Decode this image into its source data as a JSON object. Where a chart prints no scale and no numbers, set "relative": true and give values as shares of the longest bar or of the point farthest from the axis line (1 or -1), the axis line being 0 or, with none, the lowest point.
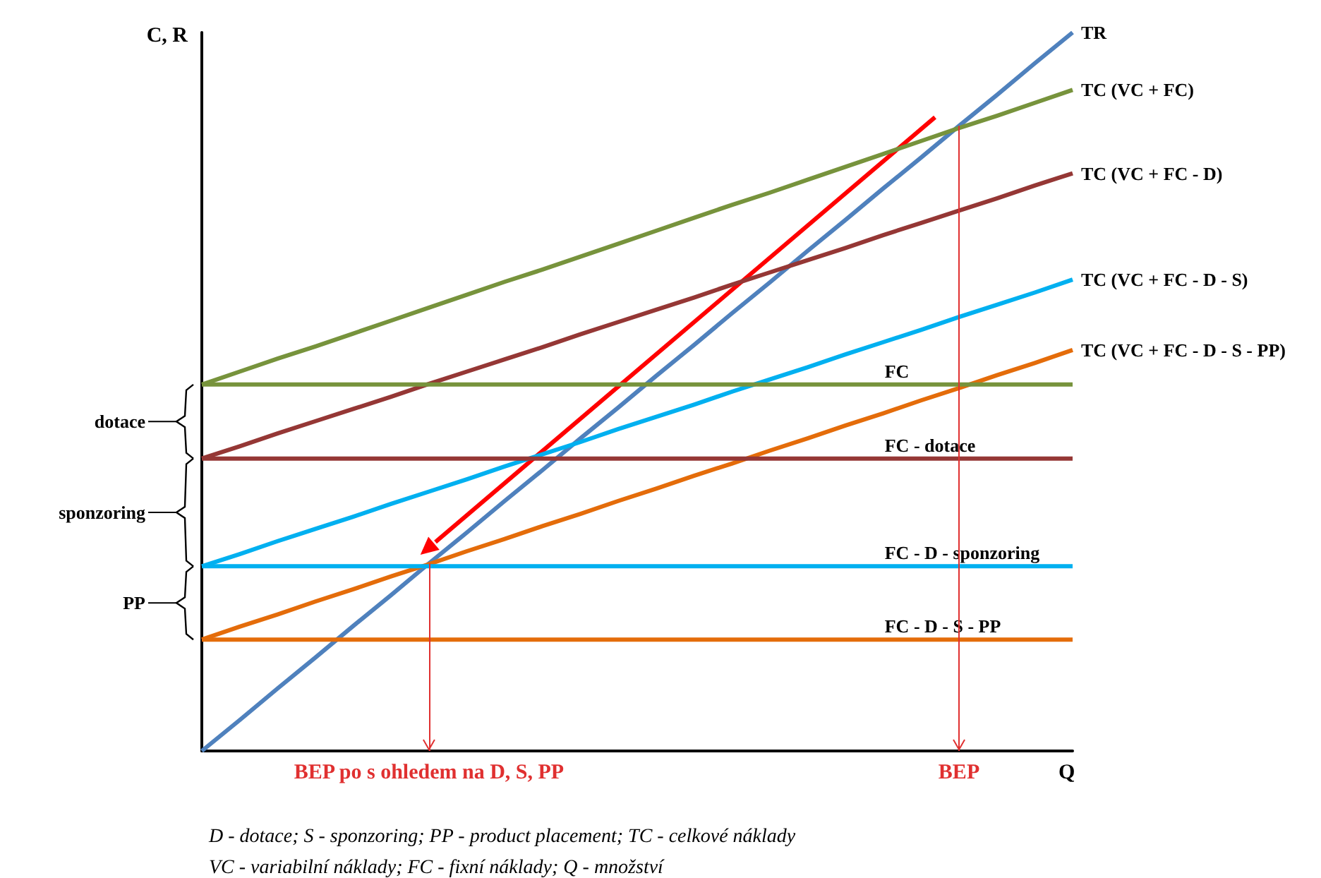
{
  "chart_data": {
    "type": "line",
    "relative": true,
    "xlabel": "Q",
    "ylabel": "C, R",
    "legend": false,
    "grid": false,
    "categories": [
      null,
      null,
      null,
      null,
      null,
      null,
      null,
      null,
      null,
      null,
      null,
      null,
      null,
      null,
      null,
      null,
      null,
      null,
      null,
      null,
      null,
      null,
      null,
      null
    ],
    "series": [
      {
        "name": "TR",
        "color": "#4f81bd",
        "values": [
          0,
          0.043,
          0.087,
          0.13,
          0.174,
          0.217,
          0.261,
          0.304,
          0.348,
          0.391,
          0.435,
          0.478,
          0.522,
          0.565,
          0.609,
          0.652,
          0.696,
          0.739,
          0.783,
          0.826,
          0.87,
          0.913,
          0.957,
          1
        ]
      },
      {
        "name": "TC (VC + FC)",
        "color": "#77933c",
        "values": [
          0.51,
          0.528,
          0.546,
          0.563,
          0.581,
          0.599,
          0.617,
          0.635,
          0.653,
          0.67,
          0.688,
          0.706,
          0.724,
          0.742,
          0.76,
          0.777,
          0.795,
          0.813,
          0.831,
          0.849,
          0.867,
          0.884,
          0.902,
          0.92
        ]
      },
      {
        "name": "TC (VC + FC - D)",
        "color": "#953735",
        "values": [
          0.407,
          0.424,
          0.442,
          0.459,
          0.476,
          0.493,
          0.511,
          0.528,
          0.545,
          0.562,
          0.58,
          0.597,
          0.614,
          0.631,
          0.649,
          0.666,
          0.683,
          0.7,
          0.718,
          0.735,
          0.752,
          0.769,
          0.787,
          0.804
        ]
      },
      {
        "name": "TC (VC + FC - D - S)",
        "color": "#00b0f0",
        "values": [
          0.257,
          0.274,
          0.292,
          0.309,
          0.326,
          0.344,
          0.361,
          0.378,
          0.396,
          0.413,
          0.43,
          0.448,
          0.465,
          0.482,
          0.5,
          0.517,
          0.534,
          0.552,
          0.569,
          0.586,
          0.604,
          0.621,
          0.638,
          0.656
        ]
      },
      {
        "name": "TC (VC + FC - D - S - PP)",
        "color": "#e46c0a",
        "values": [
          0.155,
          0.173,
          0.19,
          0.208,
          0.225,
          0.243,
          0.26,
          0.278,
          0.295,
          0.313,
          0.33,
          0.348,
          0.365,
          0.383,
          0.4,
          0.418,
          0.435,
          0.453,
          0.47,
          0.488,
          0.505,
          0.523,
          0.54,
          0.558
        ]
      },
      {
        "name": "FC",
        "color": "#77933c",
        "values": [
          0.51,
          0.51,
          0.51,
          0.51,
          0.51,
          0.51,
          0.51,
          0.51,
          0.51,
          0.51,
          0.51,
          0.51,
          0.51,
          0.51,
          0.51,
          0.51,
          0.51,
          0.51,
          0.51,
          0.51,
          0.51,
          0.51,
          0.51,
          0.51
        ]
      },
      {
        "name": "FC - dotace",
        "color": "#953735",
        "values": [
          0.407,
          0.407,
          0.407,
          0.407,
          0.407,
          0.407,
          0.407,
          0.407,
          0.407,
          0.407,
          0.407,
          0.407,
          0.407,
          0.407,
          0.407,
          0.407,
          0.407,
          0.407,
          0.407,
          0.407,
          0.407,
          0.407,
          0.407,
          0.407
        ]
      },
      {
        "name": "FC - D - sponzoring",
        "color": "#00b0f0",
        "values": [
          0.257,
          0.257,
          0.257,
          0.257,
          0.257,
          0.257,
          0.257,
          0.257,
          0.257,
          0.257,
          0.257,
          0.257,
          0.257,
          0.257,
          0.257,
          0.257,
          0.257,
          0.257,
          0.257,
          0.257,
          0.257,
          0.257,
          0.257,
          0.257
        ]
      },
      {
        "name": "FC - D - S - PP",
        "color": "#e46c0a",
        "values": [
          0.155,
          0.155,
          0.155,
          0.155,
          0.155,
          0.155,
          0.155,
          0.155,
          0.155,
          0.155,
          0.155,
          0.155,
          0.155,
          0.155,
          0.155,
          0.155,
          0.155,
          0.155,
          0.155,
          0.155,
          0.155,
          0.155,
          0.155,
          0.155
        ]
      }
    ],
    "annotations": [
      "BEP po s ohledem na D, S, PP",
      "BEP",
      "dotace",
      "sponzoring",
      "PP",
      "D - dotace; S - sponzoring; PP - product placement; TC - celkové náklady",
      "VC - variabilní náklady; FC - fixní náklady; Q - množství"
    ]
  }
}
